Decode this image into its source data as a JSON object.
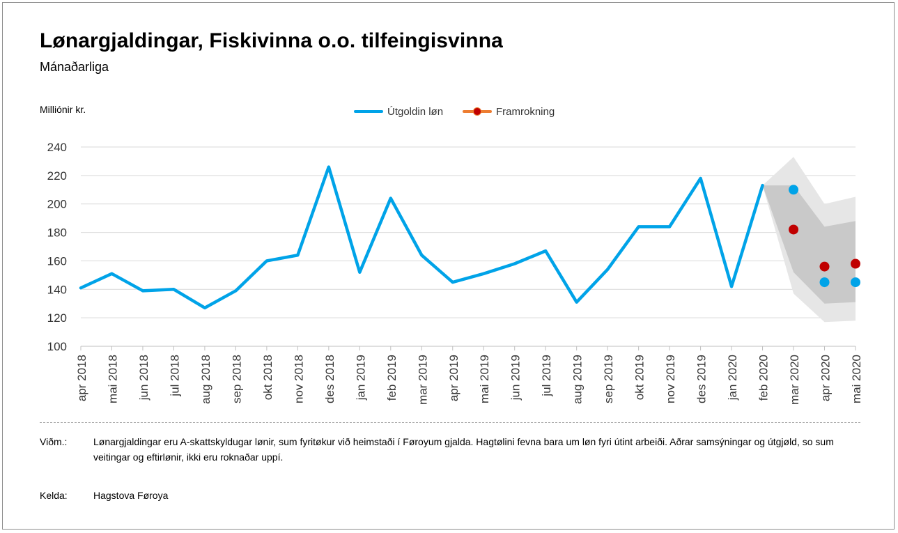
{
  "header": {
    "title": "Lønargjaldingar, Fiskivinna o.o. tilfeingisvinna",
    "subtitle": "Mánaðarliga",
    "unit": "Milliónir kr."
  },
  "legend": {
    "actual": "Útgoldin løn",
    "forecast": "Framrokning"
  },
  "notes": {
    "remark_label": "Viðm.:",
    "remark_text": "Lønargjaldingar eru A-skattskyldugar lønir, sum fyritøkur við heimstaði í Føroyum gjalda. Hagtølini fevna bara um løn fyri útint arbeiði. Aðrar samsýningar og útgjøld, so sum veitingar og eftirlønir, ikki eru roknaðar uppí.",
    "source_label": "Kelda:",
    "source_text": "Hagstova Føroya"
  },
  "colors": {
    "actual": "#00A3E8",
    "forecast": "#C00000",
    "forecast_legend_line": "#ED7D31",
    "band_outer": "#E6E6E6",
    "band_inner": "#C9C9C9",
    "grid": "#D9D9D9"
  },
  "chart_data": {
    "type": "line",
    "ylim": [
      100,
      240
    ],
    "yticks": [
      100,
      120,
      140,
      160,
      180,
      200,
      220,
      240
    ],
    "grid": true,
    "legend_position": "top-center",
    "categories": [
      "apr 2018",
      "mai 2018",
      "jun 2018",
      "jul 2018",
      "aug 2018",
      "sep 2018",
      "okt 2018",
      "nov 2018",
      "des 2018",
      "jan 2019",
      "feb 2019",
      "mar 2019",
      "apr 2019",
      "mai 2019",
      "jun 2019",
      "jul 2019",
      "aug 2019",
      "sep 2019",
      "okt 2019",
      "nov 2019",
      "des 2019",
      "jan 2020",
      "feb 2020",
      "mar 2020",
      "apr 2020",
      "mai 2020"
    ],
    "series": [
      {
        "name": "Útgoldin løn",
        "values": [
          141,
          151,
          139,
          140,
          127,
          139,
          160,
          164,
          226,
          152,
          204,
          164,
          145,
          151,
          158,
          167,
          131,
          154,
          184,
          184,
          218,
          142,
          213,
          null,
          null,
          null
        ]
      }
    ],
    "points_blue": [
      {
        "x": "mar 2020",
        "y": 210
      },
      {
        "x": "apr 2020",
        "y": 145
      },
      {
        "x": "mai 2020",
        "y": 145
      }
    ],
    "forecast": [
      {
        "x": "mar 2020",
        "y": 182
      },
      {
        "x": "apr 2020",
        "y": 156
      },
      {
        "x": "mai 2020",
        "y": 158
      }
    ],
    "band_outer": [
      {
        "x": "feb 2020",
        "low": 213,
        "high": 213
      },
      {
        "x": "mar 2020",
        "low": 137,
        "high": 233
      },
      {
        "x": "apr 2020",
        "low": 117,
        "high": 200
      },
      {
        "x": "mai 2020",
        "low": 118,
        "high": 205
      }
    ],
    "band_inner": [
      {
        "x": "feb 2020",
        "low": 213,
        "high": 213
      },
      {
        "x": "mar 2020",
        "low": 152,
        "high": 213
      },
      {
        "x": "apr 2020",
        "low": 130,
        "high": 184
      },
      {
        "x": "mai 2020",
        "low": 131,
        "high": 188
      }
    ]
  }
}
